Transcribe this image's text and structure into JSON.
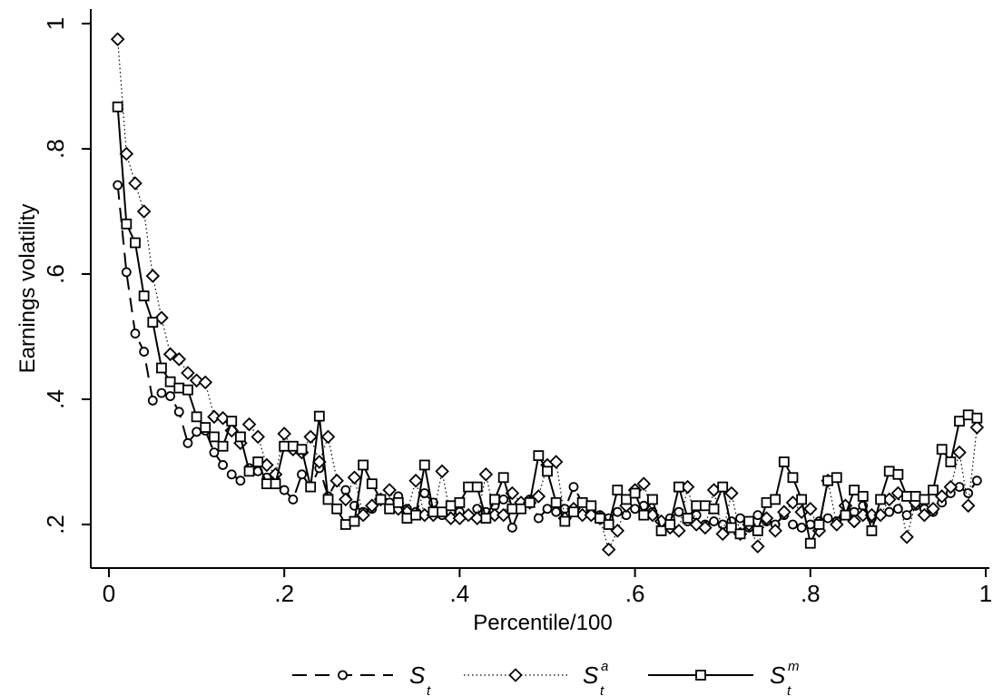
{
  "chart_data": {
    "type": "line",
    "xlabel": "Percentile/100",
    "ylabel": "Earnings volatility",
    "xlim": [
      0,
      1
    ],
    "ylim": [
      0.14,
      1.02
    ],
    "xticks": [
      {
        "value": 0,
        "label": "0"
      },
      {
        "value": 0.2,
        "label": ".2"
      },
      {
        "value": 0.4,
        "label": ".4"
      },
      {
        "value": 0.6,
        "label": ".6"
      },
      {
        "value": 0.8,
        "label": ".8"
      },
      {
        "value": 1,
        "label": "1"
      }
    ],
    "yticks": [
      {
        "value": 0.2,
        "label": ".2"
      },
      {
        "value": 0.4,
        "label": ".4"
      },
      {
        "value": 0.6,
        "label": ".6"
      },
      {
        "value": 0.8,
        "label": ".8"
      },
      {
        "value": 1,
        "label": "1"
      }
    ],
    "grid": false,
    "legend_position": "bottom",
    "x": [
      0.01,
      0.02,
      0.03,
      0.04,
      0.05,
      0.06,
      0.07,
      0.08,
      0.09,
      0.1,
      0.11,
      0.12,
      0.13,
      0.14,
      0.15,
      0.16,
      0.17,
      0.18,
      0.19,
      0.2,
      0.21,
      0.22,
      0.23,
      0.24,
      0.25,
      0.26,
      0.27,
      0.28,
      0.29,
      0.3,
      0.31,
      0.32,
      0.33,
      0.34,
      0.35,
      0.36,
      0.37,
      0.38,
      0.39,
      0.4,
      0.41,
      0.42,
      0.43,
      0.44,
      0.45,
      0.46,
      0.47,
      0.48,
      0.49,
      0.5,
      0.51,
      0.52,
      0.53,
      0.54,
      0.55,
      0.56,
      0.57,
      0.58,
      0.59,
      0.6,
      0.61,
      0.62,
      0.63,
      0.64,
      0.65,
      0.66,
      0.67,
      0.68,
      0.69,
      0.7,
      0.71,
      0.72,
      0.73,
      0.74,
      0.75,
      0.76,
      0.77,
      0.78,
      0.79,
      0.8,
      0.81,
      0.82,
      0.83,
      0.84,
      0.85,
      0.86,
      0.87,
      0.88,
      0.89,
      0.9,
      0.91,
      0.92,
      0.93,
      0.94,
      0.95,
      0.96,
      0.97,
      0.98,
      0.99
    ],
    "series": [
      {
        "name": "S_t",
        "symbol": "S",
        "sub": "t",
        "sup": "",
        "line": "dashed",
        "marker": "circle",
        "values": [
          0.742,
          0.603,
          0.505,
          0.476,
          0.398,
          0.41,
          0.405,
          0.38,
          0.33,
          0.348,
          0.35,
          0.315,
          0.295,
          0.28,
          0.27,
          0.29,
          0.285,
          0.275,
          0.27,
          0.255,
          0.24,
          0.28,
          0.26,
          0.29,
          0.245,
          0.27,
          0.255,
          0.23,
          0.22,
          0.225,
          0.24,
          0.235,
          0.245,
          0.225,
          0.22,
          0.25,
          0.235,
          0.215,
          0.22,
          0.22,
          0.215,
          0.225,
          0.22,
          0.23,
          0.24,
          0.195,
          0.23,
          0.24,
          0.21,
          0.225,
          0.22,
          0.225,
          0.26,
          0.235,
          0.22,
          0.215,
          0.21,
          0.22,
          0.215,
          0.225,
          0.23,
          0.22,
          0.205,
          0.21,
          0.22,
          0.205,
          0.215,
          0.2,
          0.205,
          0.2,
          0.205,
          0.21,
          0.195,
          0.215,
          0.205,
          0.2,
          0.215,
          0.2,
          0.195,
          0.2,
          0.205,
          0.21,
          0.205,
          0.23,
          0.22,
          0.23,
          0.21,
          0.215,
          0.22,
          0.225,
          0.215,
          0.23,
          0.225,
          0.22,
          0.235,
          0.25,
          0.26,
          0.25,
          0.27
        ]
      },
      {
        "name": "S_t^a",
        "symbol": "S",
        "sub": "t",
        "sup": "a",
        "line": "dotted",
        "marker": "diamond",
        "values": [
          0.975,
          0.792,
          0.745,
          0.7,
          0.597,
          0.53,
          0.472,
          0.464,
          0.442,
          0.43,
          0.427,
          0.372,
          0.37,
          0.35,
          0.33,
          0.36,
          0.34,
          0.295,
          0.28,
          0.345,
          0.32,
          0.315,
          0.34,
          0.3,
          0.34,
          0.27,
          0.24,
          0.275,
          0.215,
          0.23,
          0.24,
          0.255,
          0.225,
          0.22,
          0.27,
          0.215,
          0.215,
          0.285,
          0.21,
          0.21,
          0.215,
          0.21,
          0.28,
          0.215,
          0.215,
          0.25,
          0.235,
          0.235,
          0.245,
          0.295,
          0.3,
          0.21,
          0.225,
          0.215,
          0.215,
          0.21,
          0.16,
          0.19,
          0.23,
          0.255,
          0.265,
          0.215,
          0.205,
          0.195,
          0.19,
          0.26,
          0.2,
          0.195,
          0.255,
          0.185,
          0.25,
          0.185,
          0.2,
          0.165,
          0.21,
          0.19,
          0.22,
          0.235,
          0.22,
          0.225,
          0.19,
          0.27,
          0.2,
          0.23,
          0.205,
          0.215,
          0.215,
          0.215,
          0.24,
          0.25,
          0.18,
          0.235,
          0.215,
          0.225,
          0.245,
          0.26,
          0.315,
          0.23,
          0.355
        ]
      },
      {
        "name": "S_t^m",
        "symbol": "S",
        "sub": "t",
        "sup": "m",
        "line": "solid",
        "marker": "square",
        "values": [
          0.867,
          0.68,
          0.65,
          0.565,
          0.523,
          0.45,
          0.428,
          0.418,
          0.415,
          0.372,
          0.355,
          0.34,
          0.325,
          0.365,
          0.34,
          0.285,
          0.3,
          0.265,
          0.265,
          0.325,
          0.325,
          0.32,
          0.26,
          0.373,
          0.24,
          0.225,
          0.2,
          0.205,
          0.295,
          0.265,
          0.24,
          0.225,
          0.235,
          0.21,
          0.215,
          0.295,
          0.22,
          0.22,
          0.23,
          0.235,
          0.26,
          0.26,
          0.21,
          0.24,
          0.275,
          0.225,
          0.225,
          0.235,
          0.31,
          0.285,
          0.235,
          0.205,
          0.22,
          0.235,
          0.23,
          0.21,
          0.2,
          0.255,
          0.24,
          0.25,
          0.215,
          0.24,
          0.19,
          0.2,
          0.26,
          0.21,
          0.23,
          0.23,
          0.225,
          0.26,
          0.195,
          0.185,
          0.205,
          0.19,
          0.235,
          0.24,
          0.3,
          0.275,
          0.24,
          0.17,
          0.2,
          0.27,
          0.275,
          0.215,
          0.255,
          0.245,
          0.19,
          0.24,
          0.285,
          0.28,
          0.245,
          0.245,
          0.24,
          0.255,
          0.32,
          0.3,
          0.365,
          0.375,
          0.37
        ]
      }
    ]
  }
}
